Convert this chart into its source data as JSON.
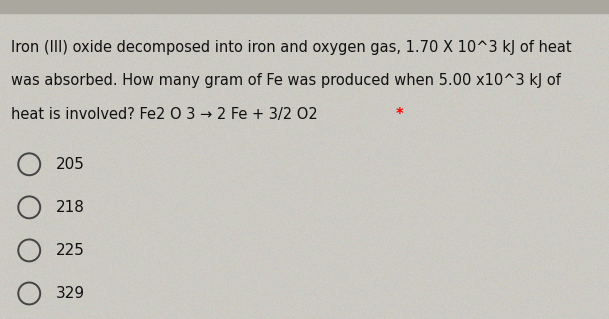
{
  "background_color": "#cccac3",
  "question_line1": "Iron (III) oxide decomposed into iron and oxygen gas, 1.70 X 10^3 kJ of heat",
  "question_line2": "was absorbed. How many gram of Fe was produced when 5.00 x10^3 kJ of",
  "question_line3_normal": "heat is involved? Fe2 O 3 → 2 Fe + 3/2 O2 ",
  "question_line3_red": "*",
  "choices": [
    "205",
    "218",
    "225",
    "329"
  ],
  "text_color": "#111111",
  "circle_color": "#444444",
  "font_size": 10.5,
  "font_family": "DejaVu Sans",
  "top_bar_color": "#aaa89e",
  "top_bar_height": 0.04
}
